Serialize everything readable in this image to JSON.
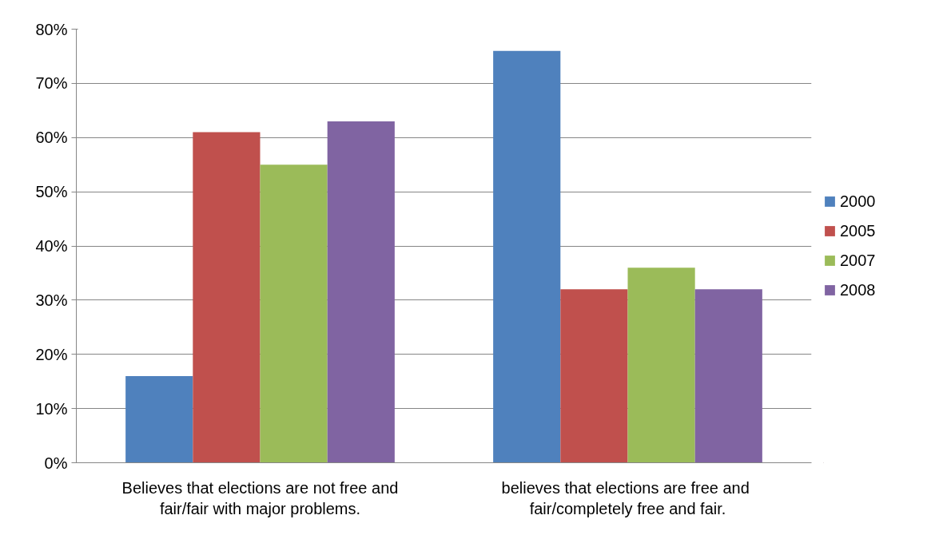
{
  "chart_data": {
    "type": "bar",
    "categories": [
      "Believes that elections are not free and fair/fair with major problems.",
      "believes that elections are  free and fair/completely free and fair."
    ],
    "series": [
      {
        "name": "2000",
        "color": "#4f81bd",
        "values": [
          16,
          76
        ]
      },
      {
        "name": "2005",
        "color": "#c0504d",
        "values": [
          61,
          32
        ]
      },
      {
        "name": "2007",
        "color": "#9bbb59",
        "values": [
          55,
          36
        ]
      },
      {
        "name": "2008",
        "color": "#8064a2",
        "values": [
          63,
          32
        ]
      }
    ],
    "ylim": [
      0,
      80
    ],
    "yticks": [
      {
        "value": 0,
        "label": "0%"
      },
      {
        "value": 10,
        "label": "10%"
      },
      {
        "value": 20,
        "label": "20%"
      },
      {
        "value": 30,
        "label": "30%"
      },
      {
        "value": 40,
        "label": "40%"
      },
      {
        "value": 50,
        "label": "50%"
      },
      {
        "value": 60,
        "label": "60%"
      },
      {
        "value": 70,
        "label": "70%"
      },
      {
        "value": 80,
        "label": "80%"
      }
    ],
    "grid": "y",
    "legend": "right"
  }
}
